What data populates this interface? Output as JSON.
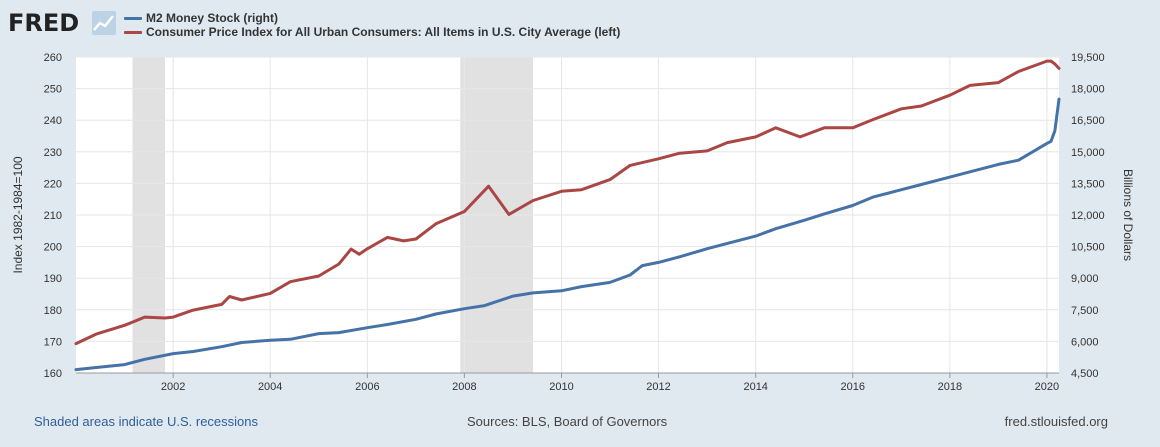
{
  "brand": {
    "logo_text": "FRED",
    "logo_icon": "line-graph-icon"
  },
  "footer": {
    "recession_note": "Shaded areas indicate U.S. recessions",
    "sources": "Sources: BLS, Board of Governors",
    "site": "fred.stlouisfed.org"
  },
  "chart_data": {
    "type": "line",
    "x_range": [
      "2000-01-01",
      "2020-04-01"
    ],
    "x_ticks": [
      "2002",
      "2004",
      "2006",
      "2008",
      "2010",
      "2012",
      "2014",
      "2016",
      "2018",
      "2020"
    ],
    "left_axis": {
      "label": "Index 1982-1984=100",
      "ylim": [
        160,
        260
      ],
      "ticks": [
        "160",
        "170",
        "180",
        "190",
        "200",
        "210",
        "220",
        "230",
        "240",
        "250",
        "260"
      ]
    },
    "right_axis": {
      "label": "Billions of Dollars",
      "ylim": [
        4500,
        19500
      ],
      "ticks": [
        "4,500",
        "6,000",
        "7,500",
        "9,000",
        "10,500",
        "12,000",
        "13,500",
        "15,000",
        "16,500",
        "18,000",
        "19,500"
      ]
    },
    "grid": true,
    "recessions": [
      {
        "start": "2001-03-01",
        "end": "2001-11-01"
      },
      {
        "start": "2007-12-01",
        "end": "2009-06-01"
      }
    ],
    "series": [
      {
        "name": "M2 Money Stock (right)",
        "axis": "right",
        "color": "#4572a7",
        "points": [
          [
            "2000-01-01",
            4660
          ],
          [
            "2000-06-01",
            4760
          ],
          [
            "2001-01-01",
            4900
          ],
          [
            "2001-06-01",
            5150
          ],
          [
            "2002-01-01",
            5420
          ],
          [
            "2002-06-01",
            5520
          ],
          [
            "2003-01-01",
            5750
          ],
          [
            "2003-06-01",
            5950
          ],
          [
            "2004-01-01",
            6050
          ],
          [
            "2004-06-01",
            6100
          ],
          [
            "2005-01-01",
            6370
          ],
          [
            "2005-06-01",
            6420
          ],
          [
            "2006-01-01",
            6650
          ],
          [
            "2006-06-01",
            6800
          ],
          [
            "2007-01-01",
            7050
          ],
          [
            "2007-06-01",
            7300
          ],
          [
            "2008-01-01",
            7550
          ],
          [
            "2008-06-01",
            7700
          ],
          [
            "2009-01-01",
            8150
          ],
          [
            "2009-06-01",
            8300
          ],
          [
            "2010-01-01",
            8400
          ],
          [
            "2010-06-01",
            8600
          ],
          [
            "2011-01-01",
            8800
          ],
          [
            "2011-06-01",
            9150
          ],
          [
            "2011-09-01",
            9600
          ],
          [
            "2012-01-01",
            9750
          ],
          [
            "2012-06-01",
            10000
          ],
          [
            "2013-01-01",
            10400
          ],
          [
            "2013-06-01",
            10650
          ],
          [
            "2014-01-01",
            11000
          ],
          [
            "2014-06-01",
            11350
          ],
          [
            "2015-01-01",
            11750
          ],
          [
            "2015-06-01",
            12050
          ],
          [
            "2016-01-01",
            12450
          ],
          [
            "2016-06-01",
            12850
          ],
          [
            "2017-01-01",
            13200
          ],
          [
            "2017-06-01",
            13450
          ],
          [
            "2018-01-01",
            13800
          ],
          [
            "2018-06-01",
            14050
          ],
          [
            "2019-01-01",
            14400
          ],
          [
            "2019-06-01",
            14600
          ],
          [
            "2020-01-01",
            15400
          ],
          [
            "2020-02-01",
            15500
          ],
          [
            "2020-03-01",
            16000
          ],
          [
            "2020-04-01",
            17500
          ]
        ]
      },
      {
        "name": "Consumer Price Index for All Urban Consumers: All Items in U.S. City Average (left)",
        "axis": "left",
        "color": "#aa4643",
        "points": [
          [
            "2000-01-01",
            169.3
          ],
          [
            "2000-06-01",
            172.3
          ],
          [
            "2001-01-01",
            175.1
          ],
          [
            "2001-06-01",
            177.7
          ],
          [
            "2001-11-01",
            177.4
          ],
          [
            "2002-01-01",
            177.7
          ],
          [
            "2002-06-01",
            179.9
          ],
          [
            "2003-01-01",
            181.7
          ],
          [
            "2003-03-01",
            184.2
          ],
          [
            "2003-06-01",
            183.1
          ],
          [
            "2004-01-01",
            185.2
          ],
          [
            "2004-06-01",
            188.9
          ],
          [
            "2005-01-01",
            190.7
          ],
          [
            "2005-06-01",
            194.5
          ],
          [
            "2005-09-01",
            199.2
          ],
          [
            "2005-11-01",
            197.6
          ],
          [
            "2006-01-01",
            199.3
          ],
          [
            "2006-06-01",
            202.9
          ],
          [
            "2006-10-01",
            201.8
          ],
          [
            "2007-01-01",
            202.4
          ],
          [
            "2007-06-01",
            207.2
          ],
          [
            "2008-01-01",
            211.1
          ],
          [
            "2008-07-01",
            219.1
          ],
          [
            "2008-12-01",
            210.2
          ],
          [
            "2009-06-01",
            214.6
          ],
          [
            "2010-01-01",
            217.5
          ],
          [
            "2010-06-01",
            218.0
          ],
          [
            "2011-01-01",
            221.2
          ],
          [
            "2011-06-01",
            225.7
          ],
          [
            "2012-01-01",
            227.8
          ],
          [
            "2012-06-01",
            229.5
          ],
          [
            "2013-01-01",
            230.3
          ],
          [
            "2013-06-01",
            232.9
          ],
          [
            "2014-01-01",
            234.7
          ],
          [
            "2014-06-01",
            237.6
          ],
          [
            "2014-12-01",
            234.7
          ],
          [
            "2015-06-01",
            237.6
          ],
          [
            "2016-01-01",
            237.6
          ],
          [
            "2016-06-01",
            240.2
          ],
          [
            "2017-01-01",
            243.6
          ],
          [
            "2017-06-01",
            244.5
          ],
          [
            "2018-01-01",
            247.9
          ],
          [
            "2018-06-01",
            251.0
          ],
          [
            "2019-01-01",
            251.9
          ],
          [
            "2019-06-01",
            255.4
          ],
          [
            "2020-01-01",
            258.7
          ],
          [
            "2020-02-01",
            258.7
          ],
          [
            "2020-03-01",
            257.8
          ],
          [
            "2020-04-01",
            256.4
          ]
        ]
      }
    ]
  }
}
